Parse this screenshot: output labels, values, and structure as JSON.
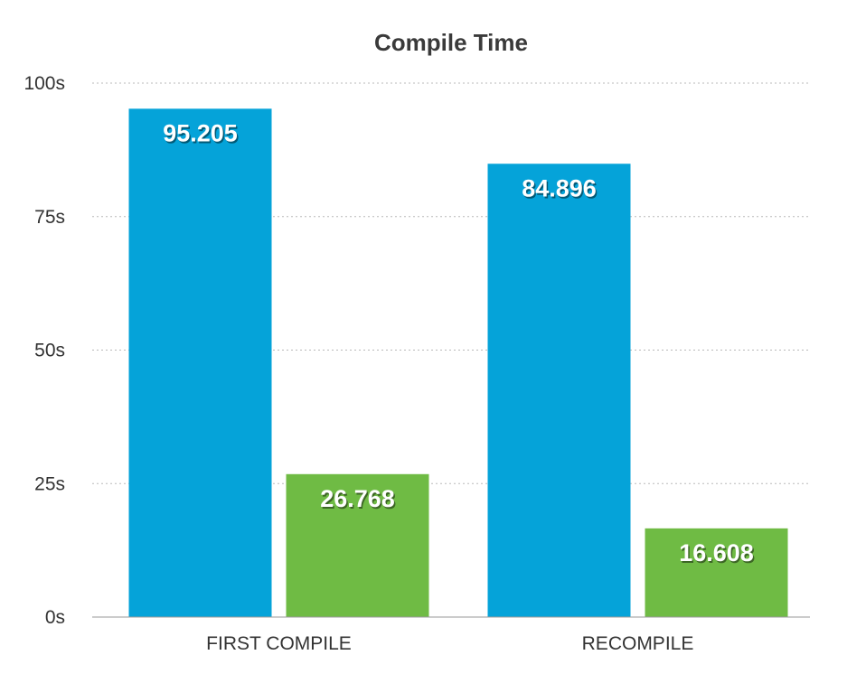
{
  "chart_data": {
    "type": "bar",
    "title": "Compile Time",
    "categories": [
      "FIRST COMPILE",
      "RECOMPILE"
    ],
    "series": [
      {
        "values": [
          95.205,
          84.896
        ],
        "color": "#05a3d9"
      },
      {
        "values": [
          26.768,
          16.608
        ],
        "color": "#6fbb44"
      }
    ],
    "data_labels": [
      [
        "95.205",
        "84.896"
      ],
      [
        "26.768",
        "16.608"
      ]
    ],
    "ylim": [
      0,
      100
    ],
    "yticks": [
      0,
      25,
      50,
      75,
      100
    ],
    "ytick_labels": [
      "0s",
      "25s",
      "50s",
      "75s",
      "100s"
    ],
    "grid": true,
    "legend": "none"
  }
}
